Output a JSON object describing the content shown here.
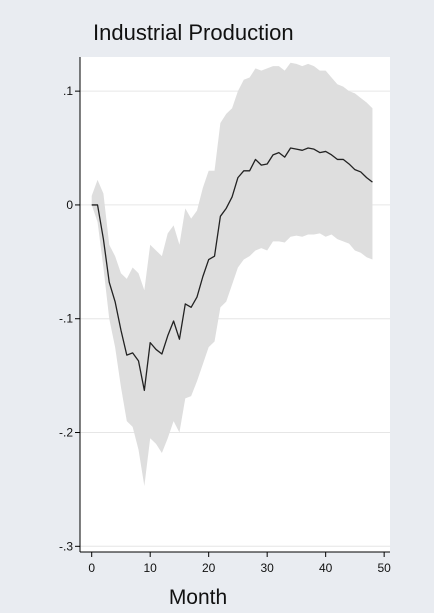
{
  "chart_data": {
    "type": "line",
    "title": "Industrial Production",
    "xlabel": "Month",
    "ylabel": "",
    "xlim": [
      -2,
      51
    ],
    "ylim": [
      -0.305,
      0.13
    ],
    "xticks": [
      0,
      10,
      20,
      30,
      40,
      50
    ],
    "xtick_labels": [
      "0",
      "10",
      "20",
      "30",
      "40",
      "50"
    ],
    "yticks": [
      0.1,
      0,
      -0.1,
      -0.2,
      -0.3
    ],
    "ytick_labels": [
      ".1",
      "0",
      "-.1",
      "-.2",
      "-.3"
    ],
    "grid": "horizontal",
    "colors": {
      "page": "#e9ecf1",
      "plot": "#ffffff",
      "band": "#dedede",
      "line": "#222222",
      "grid": "#e6e6e6"
    },
    "x": [
      0,
      1,
      2,
      3,
      4,
      5,
      6,
      7,
      8,
      9,
      10,
      11,
      12,
      13,
      14,
      15,
      16,
      17,
      18,
      19,
      20,
      21,
      22,
      23,
      24,
      25,
      26,
      27,
      28,
      29,
      30,
      31,
      32,
      33,
      34,
      35,
      36,
      37,
      38,
      39,
      40,
      41,
      42,
      43,
      44,
      45,
      46,
      47,
      48
    ],
    "series": [
      {
        "values": [
          0,
          0,
          -0.03,
          -0.068,
          -0.085,
          -0.11,
          -0.132,
          -0.13,
          -0.137,
          -0.163,
          -0.121,
          -0.127,
          -0.131,
          -0.115,
          -0.102,
          -0.118,
          -0.087,
          -0.09,
          -0.081,
          -0.063,
          -0.048,
          -0.045,
          -0.01,
          -0.003,
          0.007,
          0.024,
          0.03,
          0.03,
          0.04,
          0.035,
          0.036,
          0.044,
          0.046,
          0.042,
          0.05,
          0.049,
          0.048,
          0.05,
          0.049,
          0.046,
          0.047,
          0.044,
          0.04,
          0.04,
          0.036,
          0.031,
          0.029,
          0.024,
          0.02
        ],
        "lower": [
          0,
          -0.015,
          -0.055,
          -0.1,
          -0.125,
          -0.16,
          -0.19,
          -0.195,
          -0.215,
          -0.247,
          -0.205,
          -0.21,
          -0.218,
          -0.205,
          -0.19,
          -0.2,
          -0.17,
          -0.168,
          -0.155,
          -0.14,
          -0.125,
          -0.12,
          -0.09,
          -0.085,
          -0.07,
          -0.055,
          -0.048,
          -0.045,
          -0.04,
          -0.038,
          -0.04,
          -0.032,
          -0.032,
          -0.033,
          -0.028,
          -0.027,
          -0.028,
          -0.026,
          -0.026,
          -0.025,
          -0.028,
          -0.026,
          -0.03,
          -0.032,
          -0.034,
          -0.04,
          -0.042,
          -0.046,
          -0.048
        ],
        "upper": [
          0.008,
          0.022,
          0.01,
          -0.035,
          -0.045,
          -0.06,
          -0.065,
          -0.055,
          -0.06,
          -0.075,
          -0.035,
          -0.04,
          -0.045,
          -0.025,
          -0.018,
          -0.035,
          -0.003,
          -0.012,
          -0.005,
          0.015,
          0.03,
          0.03,
          0.072,
          0.08,
          0.085,
          0.1,
          0.11,
          0.112,
          0.12,
          0.118,
          0.12,
          0.122,
          0.122,
          0.118,
          0.125,
          0.124,
          0.122,
          0.124,
          0.122,
          0.118,
          0.118,
          0.112,
          0.106,
          0.104,
          0.1,
          0.098,
          0.094,
          0.09,
          0.085
        ]
      }
    ]
  }
}
